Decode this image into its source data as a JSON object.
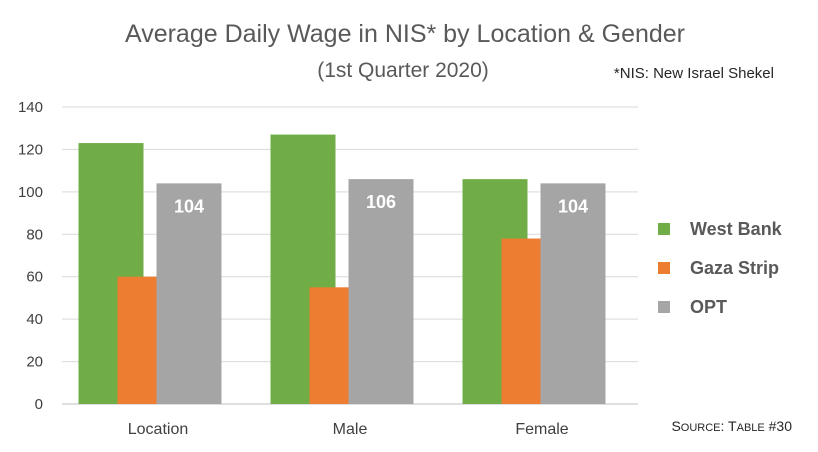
{
  "chart_data": {
    "type": "bar",
    "title": "Average Daily Wage in NIS* by Location & Gender",
    "subtitle": "(1st Quarter 2020)",
    "note": "*NIS: New Israel Shekel",
    "source": {
      "prefix": "S",
      "rest": "OURCE",
      "colon": ": ",
      "prefix2": "T",
      "rest2": "ABLE",
      "suffix": " #30"
    },
    "categories": [
      "Location",
      "Male",
      "Female"
    ],
    "series": [
      {
        "name": "West Bank",
        "color": "#70ad47",
        "values": [
          123,
          127,
          106
        ]
      },
      {
        "name": "Gaza Strip",
        "color": "#ed7d31",
        "values": [
          60,
          55,
          78
        ]
      },
      {
        "name": "OPT",
        "color": "#a5a5a5",
        "values": [
          104,
          106,
          104
        ],
        "data_labels": [
          "104",
          "106",
          "104"
        ]
      }
    ],
    "yticks": [
      "0",
      "20",
      "40",
      "60",
      "80",
      "100",
      "120",
      "140"
    ],
    "ylim": [
      0,
      140
    ],
    "grid": true,
    "legend_position": "right"
  }
}
